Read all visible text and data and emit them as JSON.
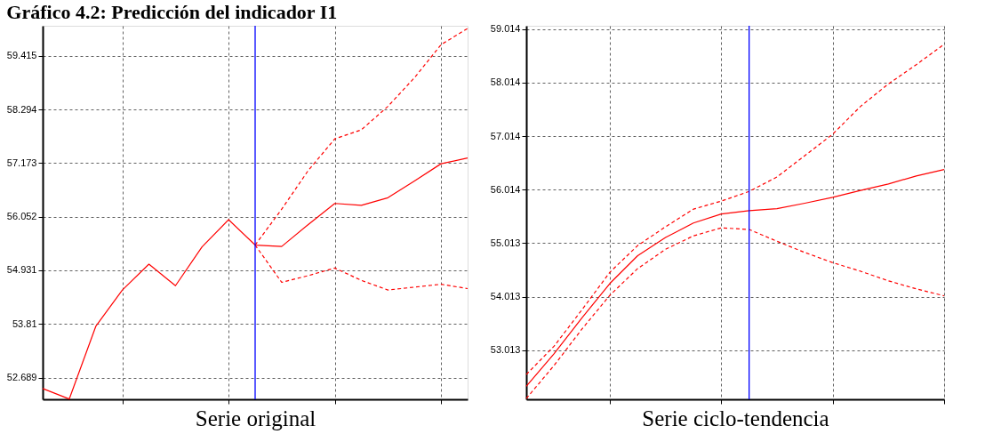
{
  "chart_data": [
    {
      "type": "line",
      "title": "Gráfico 4.2: Predicción del indicador I1",
      "xlabel": "Serie original",
      "categories": [
        null,
        null,
        null,
        null,
        null,
        null,
        null,
        null,
        null,
        null,
        null,
        null,
        null,
        null,
        null,
        null,
        null
      ],
      "ylim": [
        52.234,
        60.045
      ],
      "yticks": [
        52.689,
        53.81,
        54.931,
        56.052,
        57.173,
        58.294,
        59.415
      ],
      "grid": true,
      "series": [
        {
          "color": "#ff0000",
          "line_style": "solid",
          "values": [
            52.46,
            52.24,
            53.76,
            54.52,
            55.06,
            54.61,
            55.42,
            55.99,
            55.46,
            55.43,
            55.89,
            56.33,
            56.29,
            56.45,
            56.8,
            57.16,
            57.28
          ]
        },
        {
          "color": "#ff0000",
          "line_style": "dashed",
          "values": [
            null,
            null,
            null,
            null,
            null,
            null,
            null,
            null,
            55.46,
            56.21,
            57.02,
            57.68,
            57.87,
            58.36,
            58.96,
            59.65,
            59.99
          ]
        },
        {
          "color": "#ff0000",
          "line_style": "dashed",
          "values": [
            null,
            null,
            null,
            null,
            null,
            null,
            null,
            null,
            55.46,
            54.68,
            54.82,
            54.98,
            54.72,
            54.52,
            54.58,
            54.64,
            54.55
          ]
        }
      ]
    },
    {
      "type": "line",
      "xlabel": "Serie ciclo-tendencia",
      "categories": [
        null,
        null,
        null,
        null,
        null,
        null,
        null,
        null,
        null,
        null,
        null,
        null,
        null,
        null,
        null,
        null
      ],
      "ylim": [
        52.096,
        59.076
      ],
      "yticks": [
        53.013,
        54.013,
        55.013,
        56.014,
        57.014,
        58.014,
        59.014
      ],
      "grid": true,
      "series": [
        {
          "color": "#ff0000",
          "line_style": "solid",
          "values": [
            52.34,
            52.95,
            53.62,
            54.26,
            54.78,
            55.12,
            55.39,
            55.56,
            55.62,
            55.66,
            55.76,
            55.87,
            56.0,
            56.12,
            56.27,
            56.39
          ]
        },
        {
          "color": "#ff0000",
          "line_style": "dashed",
          "values": [
            52.56,
            53.09,
            53.77,
            54.47,
            54.97,
            55.32,
            55.65,
            55.8,
            55.98,
            56.25,
            56.65,
            57.05,
            57.57,
            57.99,
            58.35,
            58.73
          ]
        },
        {
          "color": "#ff0000",
          "line_style": "dashed",
          "values": [
            52.11,
            52.73,
            53.41,
            54.04,
            54.54,
            54.9,
            55.15,
            55.3,
            55.27,
            55.05,
            54.84,
            54.65,
            54.49,
            54.31,
            54.16,
            54.03
          ]
        }
      ]
    }
  ]
}
